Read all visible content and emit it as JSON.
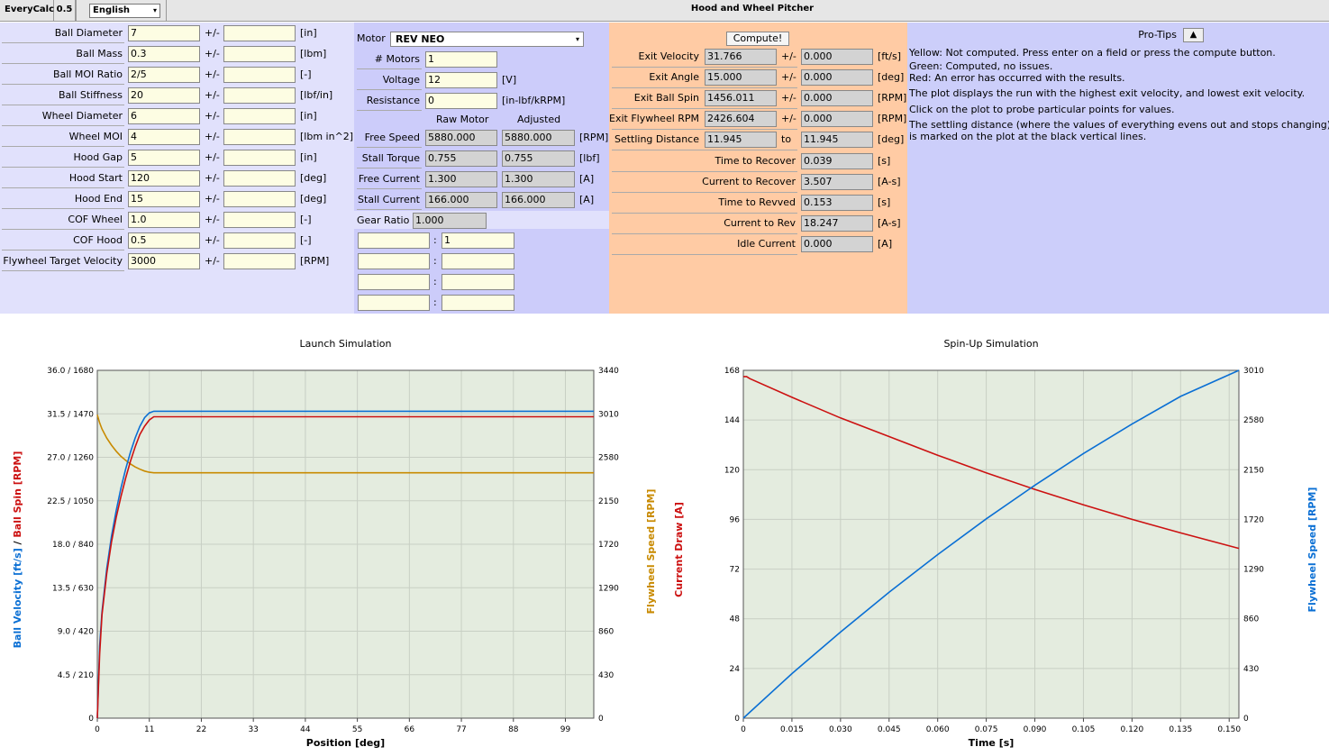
{
  "topbar": {
    "app": "EveryCalc",
    "version": "0.5",
    "language": "English",
    "title": "Hood and Wheel Pitcher"
  },
  "inputs": [
    {
      "label": "Ball Diameter",
      "value": "7",
      "pm": "+/-",
      "tol": "",
      "unit": "[in]"
    },
    {
      "label": "Ball Mass",
      "value": "0.3",
      "pm": "+/-",
      "tol": "",
      "unit": "[lbm]"
    },
    {
      "label": "Ball MOI Ratio",
      "value": "2/5",
      "pm": "+/-",
      "tol": "",
      "unit": "[-]"
    },
    {
      "label": "Ball Stiffness",
      "value": "20",
      "pm": "+/-",
      "tol": "",
      "unit": "[lbf/in]"
    },
    {
      "label": "Wheel Diameter",
      "value": "6",
      "pm": "+/-",
      "tol": "",
      "unit": "[in]"
    },
    {
      "label": "Wheel MOI",
      "value": "4",
      "pm": "+/-",
      "tol": "",
      "unit": "[lbm in^2]"
    },
    {
      "label": "Hood Gap",
      "value": "5",
      "pm": "+/-",
      "tol": "",
      "unit": "[in]"
    },
    {
      "label": "Hood Start",
      "value": "120",
      "pm": "+/-",
      "tol": "",
      "unit": "[deg]"
    },
    {
      "label": "Hood End",
      "value": "15",
      "pm": "+/-",
      "tol": "",
      "unit": "[deg]"
    },
    {
      "label": "COF Wheel",
      "value": "1.0",
      "pm": "+/-",
      "tol": "",
      "unit": "[-]"
    },
    {
      "label": "COF Hood",
      "value": "0.5",
      "pm": "+/-",
      "tol": "",
      "unit": "[-]"
    },
    {
      "label": "Flywheel Target Velocity",
      "value": "3000",
      "pm": "+/-",
      "tol": "",
      "unit": "[RPM]"
    }
  ],
  "motor": {
    "label": "Motor",
    "selected": "REV NEO",
    "params": [
      {
        "label": "# Motors",
        "value": "1",
        "unit": ""
      },
      {
        "label": "Voltage",
        "value": "12",
        "unit": "[V]"
      },
      {
        "label": "Resistance",
        "value": "0",
        "unit": "[in-lbf/kRPM]"
      }
    ],
    "col_raw": "Raw Motor",
    "col_adj": "Adjusted",
    "specs": [
      {
        "label": "Free Speed",
        "raw": "5880.000",
        "adj": "5880.000",
        "unit": "[RPM]"
      },
      {
        "label": "Stall Torque",
        "raw": "0.755",
        "adj": "0.755",
        "unit": "[lbf]"
      },
      {
        "label": "Free Current",
        "raw": "1.300",
        "adj": "1.300",
        "unit": "[A]"
      },
      {
        "label": "Stall Current",
        "raw": "166.000",
        "adj": "166.000",
        "unit": "[A]"
      }
    ],
    "gear_label": "Gear Ratio",
    "gear_value": "1.000",
    "stages": [
      {
        "a": "",
        "b": "1"
      },
      {
        "a": "",
        "b": ""
      },
      {
        "a": "",
        "b": ""
      },
      {
        "a": "",
        "b": ""
      }
    ],
    "colon": ":"
  },
  "outputs": {
    "compute": "Compute!",
    "rows": [
      {
        "label": "Exit Velocity",
        "value": "31.766",
        "mid": "+/-",
        "val2": "0.000",
        "unit": "[ft/s]"
      },
      {
        "label": "Exit Angle",
        "value": "15.000",
        "mid": "+/-",
        "val2": "0.000",
        "unit": "[deg]"
      },
      {
        "label": "Exit Ball Spin",
        "value": "1456.011",
        "mid": "+/-",
        "val2": "0.000",
        "unit": "[RPM]"
      },
      {
        "label": "Exit Flywheel RPM",
        "value": "2426.604",
        "mid": "+/-",
        "val2": "0.000",
        "unit": "[RPM]"
      },
      {
        "label": "Settling Distance",
        "value": "11.945",
        "mid": "to",
        "val2": "11.945",
        "unit": "[deg]"
      }
    ],
    "rows2": [
      {
        "label": "Time to Recover",
        "value": "0.039",
        "unit": "[s]"
      },
      {
        "label": "Current to Recover",
        "value": "3.507",
        "unit": "[A-s]"
      },
      {
        "label": "Time to Revved",
        "value": "0.153",
        "unit": "[s]"
      },
      {
        "label": "Current to Rev",
        "value": "18.247",
        "unit": "[A-s]"
      },
      {
        "label": "Idle Current",
        "value": "0.000",
        "unit": "[A]"
      }
    ]
  },
  "tips": {
    "title": "Pro-Tips",
    "button": "▲",
    "lines": [
      "Yellow: Not computed. Press enter on a field or press the compute button.",
      "Green: Computed, no issues.",
      "Red: An error has occurred with the results.",
      "The plot displays the run with the highest exit velocity, and lowest exit velocity.",
      "Click on the plot to probe particular points for values.",
      "The settling distance (where the values of everything evens out and stops changing)",
      "is marked on the plot at the black vertical lines."
    ]
  },
  "chart_data": [
    {
      "type": "line",
      "title": "Launch Simulation",
      "xlabel": "Position [deg]",
      "ylabel_left_parts": [
        "Ball Velocity [ft/s]",
        "/",
        "Ball Spin [RPM]"
      ],
      "ylabel_right_parts": [
        "Flywheel Speed [RPM]",
        "Current Draw [A]"
      ],
      "xlim": [
        0,
        105
      ],
      "ylim_left": [
        0,
        36
      ],
      "ylim_right": [
        0,
        3440
      ],
      "x_ticks": [
        "0",
        "11",
        "22",
        "33",
        "44",
        "55",
        "66",
        "77",
        "88",
        "99"
      ],
      "y_ticks_left": [
        "0",
        "4.5 / 210",
        "9.0 / 420",
        "13.5 / 630",
        "18.0 / 840",
        "22.5 / 1050",
        "27.0 / 1260",
        "31.5 / 1470",
        "36.0 / 1680"
      ],
      "y_ticks_right": [
        "0",
        "430",
        "860",
        "1290",
        "1720",
        "2150",
        "2580",
        "3010",
        "3440"
      ],
      "colors": {
        "velocity": "#0a6fd4",
        "spin": "#cc1111",
        "flywheel": "#c88a00"
      },
      "series": [
        {
          "name": "Ball Velocity [ft/s]",
          "axis": "left",
          "x": [
            0,
            0.5,
            1,
            2,
            3,
            4,
            5,
            6,
            7,
            8,
            9,
            10,
            11,
            11.945,
            105
          ],
          "y": [
            0,
            7.5,
            11,
            15.5,
            18.8,
            21.5,
            23.8,
            25.8,
            27.5,
            29.0,
            30.2,
            31.1,
            31.6,
            31.766,
            31.766
          ]
        },
        {
          "name": "Ball Spin [RPM]",
          "axis": "left_spin",
          "x": [
            0,
            0.5,
            1,
            2,
            3,
            4,
            5,
            6,
            7,
            8,
            9,
            10,
            11,
            11.945,
            105
          ],
          "y": [
            0,
            310,
            500,
            700,
            850,
            970,
            1070,
            1160,
            1240,
            1310,
            1370,
            1410,
            1440,
            1456,
            1456
          ]
        },
        {
          "name": "Flywheel Speed [RPM]",
          "axis": "right",
          "x": [
            0,
            0.5,
            1,
            2,
            3,
            4,
            5,
            6,
            7,
            8,
            9,
            10,
            11,
            11.945,
            105
          ],
          "y": [
            3000,
            2920,
            2860,
            2770,
            2700,
            2640,
            2590,
            2550,
            2515,
            2485,
            2462,
            2444,
            2432,
            2426.6,
            2426.6
          ]
        }
      ]
    },
    {
      "type": "line",
      "title": "Spin-Up Simulation",
      "xlabel": "Time [s]",
      "ylabel_right": "Flywheel Speed [RPM]",
      "xlim": [
        0,
        0.153
      ],
      "ylim_left": [
        0,
        168
      ],
      "ylim_right": [
        0,
        3010
      ],
      "x_ticks": [
        "0",
        "0.015",
        "0.030",
        "0.045",
        "0.060",
        "0.075",
        "0.090",
        "0.105",
        "0.120",
        "0.135",
        "0.150"
      ],
      "y_ticks_left": [
        "0",
        "24",
        "48",
        "72",
        "96",
        "120",
        "144",
        "168"
      ],
      "y_ticks_right": [
        "0",
        "430",
        "860",
        "1290",
        "1720",
        "2150",
        "2580",
        "3010"
      ],
      "colors": {
        "current": "#cc1111",
        "flywheel": "#0a6fd4"
      },
      "series": [
        {
          "name": "Current Draw [A]",
          "axis": "left",
          "x": [
            0,
            0.001,
            0.002,
            0.015,
            0.03,
            0.045,
            0.06,
            0.075,
            0.09,
            0.105,
            0.12,
            0.135,
            0.153
          ],
          "y": [
            165,
            165,
            164,
            155,
            145,
            136,
            127,
            118.5,
            110.5,
            103,
            96,
            89.5,
            82
          ]
        },
        {
          "name": "Flywheel Speed [RPM]",
          "axis": "right",
          "x": [
            0,
            0.015,
            0.03,
            0.045,
            0.06,
            0.075,
            0.09,
            0.105,
            0.12,
            0.135,
            0.153
          ],
          "y": [
            0,
            385,
            745,
            1090,
            1415,
            1725,
            2015,
            2290,
            2545,
            2785,
            3010
          ]
        }
      ]
    }
  ]
}
